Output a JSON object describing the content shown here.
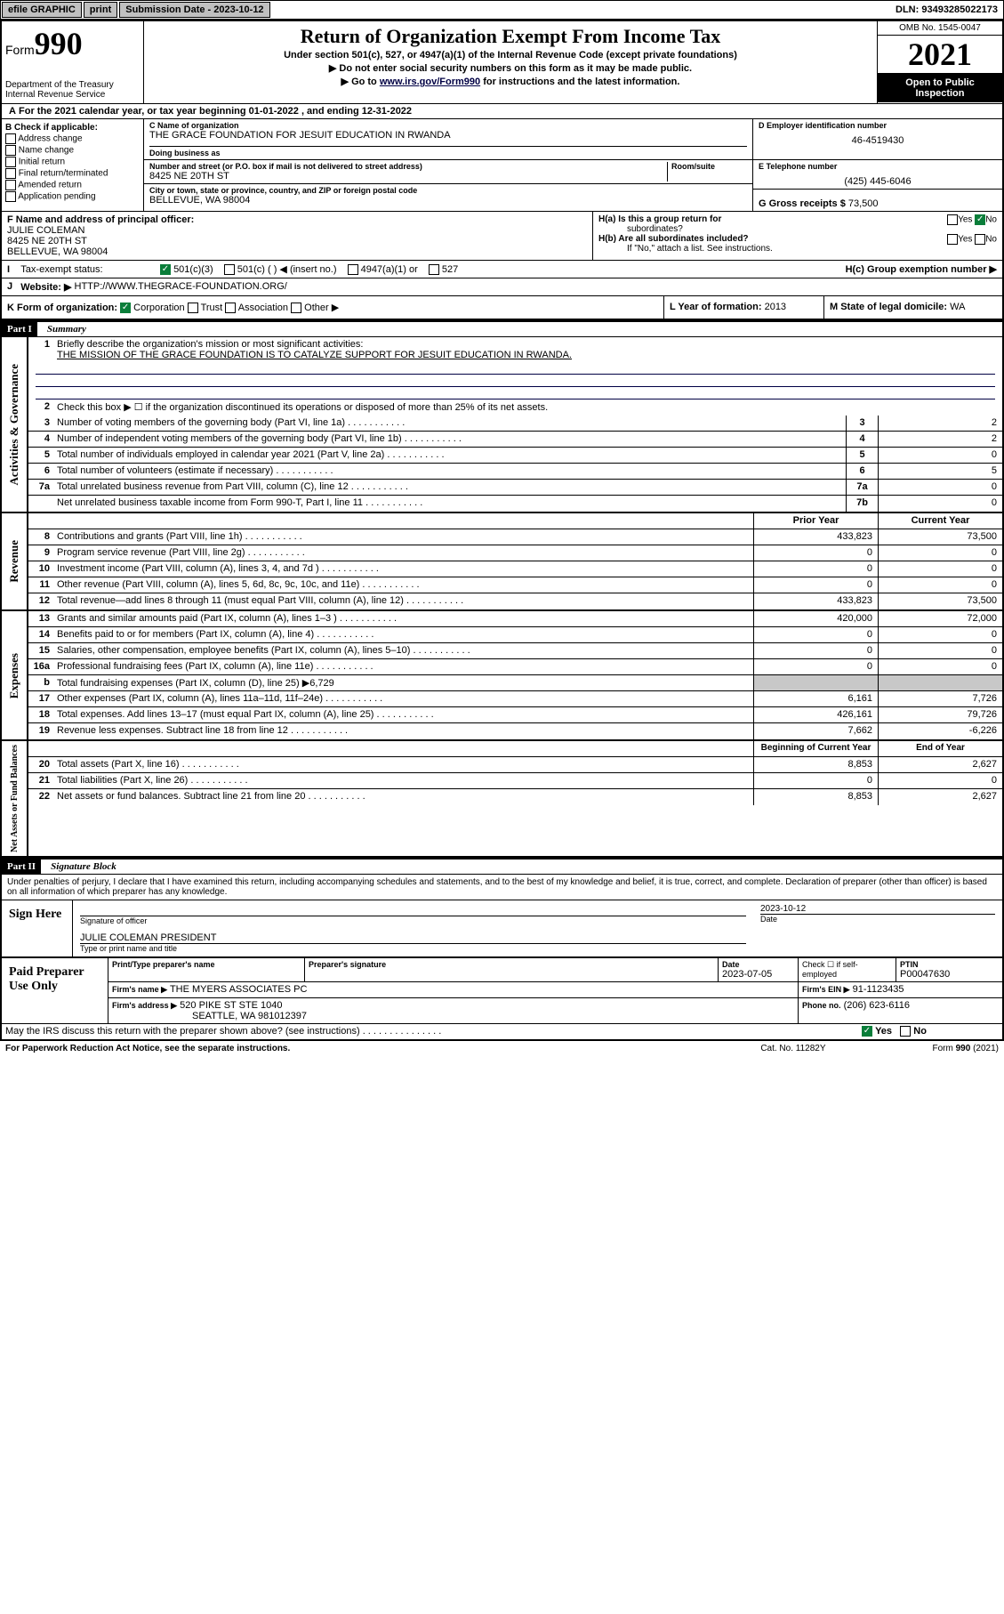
{
  "topbar": {
    "efile": "efile GRAPHIC",
    "print": "print",
    "sub_label": "Submission Date - ",
    "sub_date": "2023-10-12",
    "dln": "DLN: 93493285022173"
  },
  "header": {
    "form_label": "Form",
    "form_num": "990",
    "dept": "Department of the Treasury",
    "irs": "Internal Revenue Service",
    "title": "Return of Organization Exempt From Income Tax",
    "sub1": "Under section 501(c), 527, or 4947(a)(1) of the Internal Revenue Code (except private foundations)",
    "sub2": "▶ Do not enter social security numbers on this form as it may be made public.",
    "sub3_pre": "▶ Go to ",
    "sub3_link": "www.irs.gov/Form990",
    "sub3_post": " for instructions and the latest information.",
    "omb": "OMB No. 1545-0047",
    "year": "2021",
    "inspect": "Open to Public Inspection"
  },
  "row_a": "For the 2021 calendar year, or tax year beginning 01-01-2022    , and ending 12-31-2022",
  "b_check": {
    "label": "B Check if applicable:",
    "items": [
      "Address change",
      "Name change",
      "Initial return",
      "Final return/terminated",
      "Amended return",
      "Application pending"
    ]
  },
  "c": {
    "name_label": "C Name of organization",
    "name": "THE GRACE FOUNDATION FOR JESUIT EDUCATION IN RWANDA",
    "dba_label": "Doing business as",
    "dba": "",
    "addr_label": "Number and street (or P.O. box if mail is not delivered to street address)",
    "room_label": "Room/suite",
    "addr": "8425 NE 20TH ST",
    "city_label": "City or town, state or province, country, and ZIP or foreign postal code",
    "city": "BELLEVUE, WA  98004"
  },
  "d": {
    "label": "D Employer identification number",
    "val": "46-4519430"
  },
  "e": {
    "label": "E Telephone number",
    "val": "(425) 445-6046"
  },
  "g": {
    "label": "G Gross receipts $",
    "val": "73,500"
  },
  "f": {
    "label": "F Name and address of principal officer:",
    "name": "JULIE COLEMAN",
    "addr1": "8425 NE 20TH ST",
    "addr2": "BELLEVUE, WA  98004"
  },
  "h": {
    "a1": "H(a)  Is this a group return for",
    "a2": "subordinates?",
    "b": "H(b)  Are all subordinates included?",
    "b2": "If \"No,\" attach a list. See instructions.",
    "c": "H(c)  Group exemption number ▶",
    "yes": "Yes",
    "no": "No"
  },
  "i": {
    "label": "Tax-exempt status:",
    "opts": [
      "501(c)(3)",
      "501(c) (  ) ◀ (insert no.)",
      "4947(a)(1) or",
      "527"
    ]
  },
  "j": {
    "label": "Website: ▶",
    "val": "HTTP://WWW.THEGRACE-FOUNDATION.ORG/"
  },
  "k": {
    "label": "K Form of organization:",
    "opts": [
      "Corporation",
      "Trust",
      "Association",
      "Other ▶"
    ]
  },
  "l": {
    "label": "L Year of formation:",
    "val": "2013"
  },
  "m": {
    "label": "M State of legal domicile:",
    "val": "WA"
  },
  "part1": {
    "hdr": "Part I",
    "title": "Summary",
    "l1": "Briefly describe the organization's mission or most significant activities:",
    "l1_val": "THE MISSION OF THE GRACE FOUNDATION IS TO CATALYZE SUPPORT FOR JESUIT EDUCATION IN RWANDA.",
    "l2": "Check this box ▶ ☐  if the organization discontinued its operations or disposed of more than 25% of its net assets.",
    "lines_gov": [
      {
        "n": "3",
        "t": "Number of voting members of the governing body (Part VI, line 1a)",
        "b": "3",
        "v": "2"
      },
      {
        "n": "4",
        "t": "Number of independent voting members of the governing body (Part VI, line 1b)",
        "b": "4",
        "v": "2"
      },
      {
        "n": "5",
        "t": "Total number of individuals employed in calendar year 2021 (Part V, line 2a)",
        "b": "5",
        "v": "0"
      },
      {
        "n": "6",
        "t": "Total number of volunteers (estimate if necessary)",
        "b": "6",
        "v": "5"
      },
      {
        "n": "7a",
        "t": "Total unrelated business revenue from Part VIII, column (C), line 12",
        "b": "7a",
        "v": "0"
      },
      {
        "n": "",
        "t": "Net unrelated business taxable income from Form 990-T, Part I, line 11",
        "b": "7b",
        "v": "0"
      }
    ],
    "prior_hdr": "Prior Year",
    "curr_hdr": "Current Year",
    "rev": [
      {
        "n": "8",
        "t": "Contributions and grants (Part VIII, line 1h)",
        "p": "433,823",
        "c": "73,500"
      },
      {
        "n": "9",
        "t": "Program service revenue (Part VIII, line 2g)",
        "p": "0",
        "c": "0"
      },
      {
        "n": "10",
        "t": "Investment income (Part VIII, column (A), lines 3, 4, and 7d )",
        "p": "0",
        "c": "0"
      },
      {
        "n": "11",
        "t": "Other revenue (Part VIII, column (A), lines 5, 6d, 8c, 9c, 10c, and 11e)",
        "p": "0",
        "c": "0"
      },
      {
        "n": "12",
        "t": "Total revenue—add lines 8 through 11 (must equal Part VIII, column (A), line 12)",
        "p": "433,823",
        "c": "73,500"
      }
    ],
    "exp": [
      {
        "n": "13",
        "t": "Grants and similar amounts paid (Part IX, column (A), lines 1–3 )",
        "p": "420,000",
        "c": "72,000"
      },
      {
        "n": "14",
        "t": "Benefits paid to or for members (Part IX, column (A), line 4)",
        "p": "0",
        "c": "0"
      },
      {
        "n": "15",
        "t": "Salaries, other compensation, employee benefits (Part IX, column (A), lines 5–10)",
        "p": "0",
        "c": "0"
      },
      {
        "n": "16a",
        "t": "Professional fundraising fees (Part IX, column (A), line 11e)",
        "p": "0",
        "c": "0"
      },
      {
        "n": "b",
        "t": "Total fundraising expenses (Part IX, column (D), line 25) ▶6,729",
        "p": "",
        "c": "",
        "shade": true
      },
      {
        "n": "17",
        "t": "Other expenses (Part IX, column (A), lines 11a–11d, 11f–24e)",
        "p": "6,161",
        "c": "7,726"
      },
      {
        "n": "18",
        "t": "Total expenses. Add lines 13–17 (must equal Part IX, column (A), line 25)",
        "p": "426,161",
        "c": "79,726"
      },
      {
        "n": "19",
        "t": "Revenue less expenses. Subtract line 18 from line 12",
        "p": "7,662",
        "c": "-6,226"
      }
    ],
    "bal_hdr1": "Beginning of Current Year",
    "bal_hdr2": "End of Year",
    "bal": [
      {
        "n": "20",
        "t": "Total assets (Part X, line 16)",
        "p": "8,853",
        "c": "2,627"
      },
      {
        "n": "21",
        "t": "Total liabilities (Part X, line 26)",
        "p": "0",
        "c": "0"
      },
      {
        "n": "22",
        "t": "Net assets or fund balances. Subtract line 21 from line 20",
        "p": "8,853",
        "c": "2,627"
      }
    ]
  },
  "vert": {
    "gov": "Activities & Governance",
    "rev": "Revenue",
    "exp": "Expenses",
    "bal": "Net Assets or Fund Balances"
  },
  "part2": {
    "hdr": "Part II",
    "title": "Signature Block",
    "decl": "Under penalties of perjury, I declare that I have examined this return, including accompanying schedules and statements, and to the best of my knowledge and belief, it is true, correct, and complete. Declaration of preparer (other than officer) is based on all information of which preparer has any knowledge.",
    "sign_here": "Sign Here",
    "sig_off": "Signature of officer",
    "date": "Date",
    "sig_date": "2023-10-12",
    "officer": "JULIE COLEMAN  PRESIDENT",
    "type_name": "Type or print name and title",
    "paid": "Paid Preparer Use Only",
    "prep_name_lbl": "Print/Type preparer's name",
    "prep_sig_lbl": "Preparer's signature",
    "prep_date_lbl": "Date",
    "prep_date": "2023-07-05",
    "check_self": "Check ☐ if self-employed",
    "ptin_lbl": "PTIN",
    "ptin": "P00047630",
    "firm_name_lbl": "Firm's name    ▶",
    "firm_name": "THE MYERS ASSOCIATES PC",
    "firm_ein_lbl": "Firm's EIN ▶",
    "firm_ein": "91-1123435",
    "firm_addr_lbl": "Firm's address ▶",
    "firm_addr1": "520 PIKE ST STE 1040",
    "firm_addr2": "SEATTLE, WA  981012397",
    "phone_lbl": "Phone no.",
    "phone": "(206) 623-6116",
    "may_irs": "May the IRS discuss this return with the preparer shown above? (see instructions)",
    "yes": "Yes",
    "no": "No"
  },
  "footer": {
    "pra": "For Paperwork Reduction Act Notice, see the separate instructions.",
    "cat": "Cat. No. 11282Y",
    "form": "Form 990 (2021)"
  }
}
